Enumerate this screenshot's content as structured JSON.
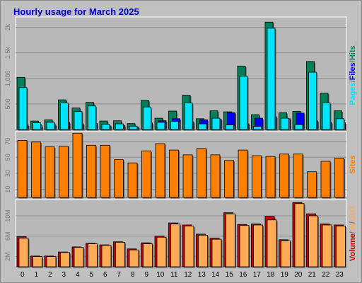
{
  "title": "Hourly usage for March 2025",
  "colors": {
    "pages": "#00e5ff",
    "files": "#0000ff",
    "hits": "#00805a",
    "sites": "#ff8000",
    "vol_in": "#ffaa55",
    "vol_out": "#cc0000",
    "panel_bg": "#b8b8b8",
    "text": "#777777"
  },
  "chart_data": [
    {
      "type": "bar",
      "name": "hits-files-pages",
      "categories": [
        "0",
        "1",
        "2",
        "3",
        "4",
        "5",
        "6",
        "7",
        "8",
        "9",
        "10",
        "11",
        "12",
        "13",
        "14",
        "15",
        "16",
        "17",
        "18",
        "19",
        "20",
        "21",
        "22",
        "23"
      ],
      "ylim": [
        0,
        2200
      ],
      "yticks": [
        "500",
        "1,000",
        "1.5k",
        "2k"
      ],
      "ytick_values": [
        500,
        1000,
        1500,
        2000
      ],
      "series": [
        {
          "name": "Hits",
          "values": [
            1020,
            165,
            190,
            580,
            420,
            530,
            165,
            170,
            115,
            570,
            220,
            360,
            670,
            210,
            365,
            345,
            1240,
            290,
            2100,
            330,
            355,
            1330,
            710,
            365
          ]
        },
        {
          "name": "Files",
          "values": [
            90,
            75,
            90,
            140,
            110,
            120,
            70,
            80,
            50,
            130,
            170,
            210,
            150,
            190,
            200,
            330,
            110,
            220,
            250,
            210,
            320,
            170,
            140,
            130
          ]
        },
        {
          "name": "Pages",
          "values": [
            820,
            130,
            140,
            520,
            350,
            460,
            100,
            110,
            65,
            440,
            140,
            160,
            520,
            110,
            220,
            90,
            1040,
            60,
            1980,
            220,
            95,
            1120,
            520,
            210
          ]
        }
      ],
      "vertical_legend": [
        {
          "text": "Pages",
          "color": "#00e5ff"
        },
        {
          "text": "/",
          "color": "#777777"
        },
        {
          "text": "Files",
          "color": "#0000ff"
        },
        {
          "text": "/",
          "color": "#777777"
        },
        {
          "text": "Hits",
          "color": "#00805a"
        },
        {
          "text": "_",
          "color": "#777777"
        }
      ]
    },
    {
      "type": "bar",
      "name": "sites",
      "categories": [
        "0",
        "1",
        "2",
        "3",
        "4",
        "5",
        "6",
        "7",
        "8",
        "9",
        "10",
        "11",
        "12",
        "13",
        "14",
        "15",
        "16",
        "17",
        "18",
        "19",
        "20",
        "21",
        "22",
        "23"
      ],
      "ylim": [
        0,
        82
      ],
      "yticks": [
        "10",
        "30",
        "50",
        "70"
      ],
      "ytick_values": [
        10,
        30,
        50,
        70
      ],
      "series": [
        {
          "name": "Sites",
          "values": [
            71,
            69,
            63,
            64,
            80,
            65,
            65,
            47,
            43,
            58,
            67,
            59,
            53,
            61,
            53,
            46,
            59,
            52,
            51,
            54,
            54,
            32,
            45,
            49
          ]
        }
      ],
      "vertical_legend": [
        {
          "text": "Sites",
          "color": "#ff8000"
        }
      ]
    },
    {
      "type": "bar",
      "name": "volume",
      "categories": [
        "0",
        "1",
        "2",
        "3",
        "4",
        "5",
        "6",
        "7",
        "8",
        "9",
        "10",
        "11",
        "12",
        "13",
        "14",
        "15",
        "16",
        "17",
        "18",
        "19",
        "20",
        "21",
        "22",
        "23"
      ],
      "ylim": [
        0,
        13.2
      ],
      "yticks": [
        "2M",
        "6M",
        "10M"
      ],
      "ytick_values": [
        2,
        6,
        10
      ],
      "series": [
        {
          "name": "Volume",
          "values": [
            5.9,
            2.1,
            2.1,
            2.9,
            3.9,
            4.6,
            4.3,
            4.9,
            3.5,
            4.7,
            6.0,
            8.6,
            8.2,
            6.4,
            5.6,
            10.6,
            8.3,
            8.4,
            9.9,
            5.3,
            12.6,
            10.4,
            8.4,
            8.2
          ]
        },
        {
          "name": "IN",
          "values": [
            5.6,
            2.0,
            2.0,
            2.8,
            3.8,
            4.5,
            4.2,
            4.8,
            3.3,
            4.5,
            5.8,
            8.4,
            8.0,
            6.2,
            5.4,
            10.4,
            8.1,
            8.2,
            9.2,
            5.1,
            12.4,
            10.0,
            8.2,
            8.0
          ]
        }
      ],
      "vertical_legend": [
        {
          "text": "Volume",
          "color": "#cc0000"
        },
        {
          "text": "/",
          "color": "#777777"
        },
        {
          "text": "IN",
          "color": "#ffaa55"
        },
        {
          "text": "/",
          "color": "#777777"
        },
        {
          "text": "OUT",
          "color": "#ffaa55"
        }
      ]
    }
  ]
}
